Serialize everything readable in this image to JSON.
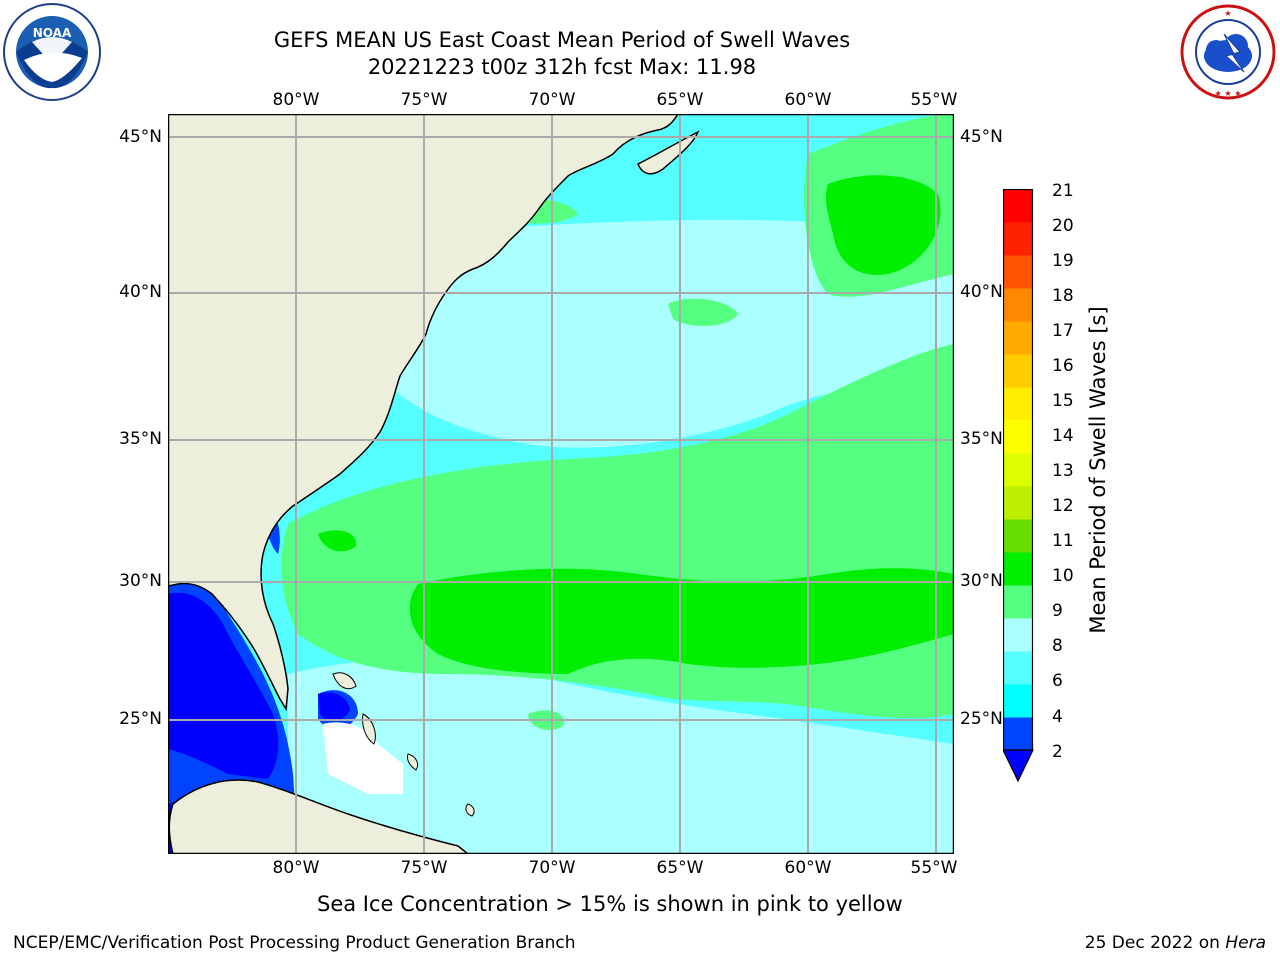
{
  "header": {
    "title": "GEFS MEAN US East Coast Mean Period of Swell Waves",
    "subtitle": "20221223 t00z 312h fcst   Max: 11.98"
  },
  "logos": {
    "left": {
      "name": "NOAA",
      "text": "NOAA",
      "ring_text": "NATIONAL OCEANIC AND ATMOSPHERIC ADMINISTRATION · U.S. DEPARTMENT OF COMMERCE"
    },
    "right": {
      "name": "National Weather Service",
      "ring_text": "NATIONAL WEATHER SERVICE"
    }
  },
  "map": {
    "lon_ticks": [
      "80°W",
      "75°W",
      "70°W",
      "65°W",
      "60°W",
      "55°W"
    ],
    "lat_ticks": [
      "45°N",
      "40°N",
      "35°N",
      "30°N",
      "25°N"
    ],
    "colors": {
      "land": "#eeeedc",
      "grid": "#aaaaaa",
      "coast": "#000000"
    }
  },
  "colorbar": {
    "label": "Mean Period of Swell Waves [s]",
    "ticks": [
      "21",
      "20",
      "19",
      "18",
      "17",
      "16",
      "15",
      "14",
      "13",
      "12",
      "11",
      "10",
      "9",
      "8",
      "6",
      "4",
      "2"
    ],
    "colors_low_to_high": [
      "#0044ff",
      "#00ffff",
      "#55ffff",
      "#aaffff",
      "#55ff7f",
      "#00ee00",
      "#66dd00",
      "#bbee00",
      "#ddff00",
      "#ffff00",
      "#ffee00",
      "#ffcc00",
      "#ffaa00",
      "#ff8800",
      "#ff5500",
      "#ff2200",
      "#ff0000"
    ],
    "under_color": "#0000ff"
  },
  "notes": {
    "sea_ice": "Sea Ice Concentration > 15% is shown in pink to yellow"
  },
  "footer": {
    "left": "NCEP/EMC/Verification Post Processing Product Generation Branch",
    "right_date": "25 Dec 2022 on ",
    "right_host": "Hera"
  }
}
